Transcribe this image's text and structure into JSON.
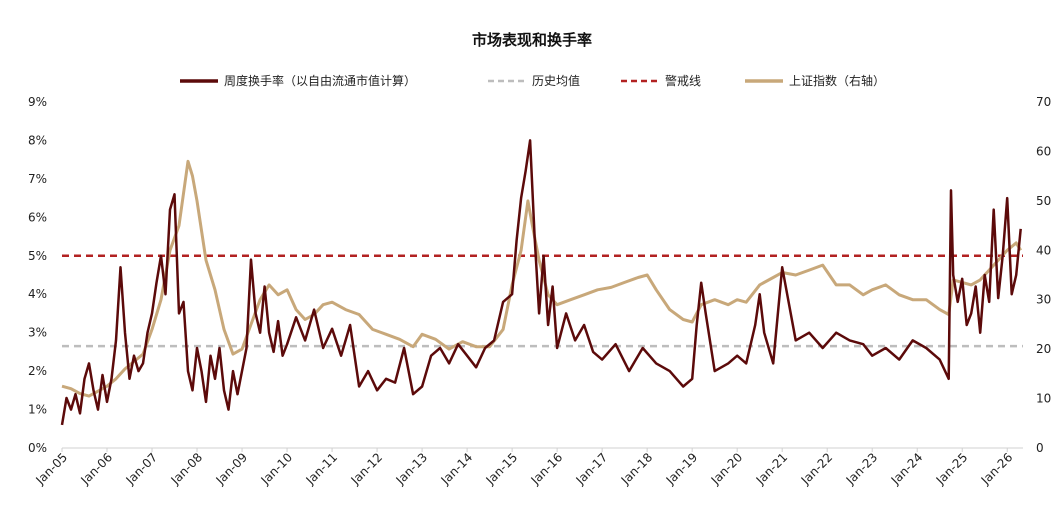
{
  "chart_data": {
    "type": "line",
    "title": "市场表现和换手率",
    "x_ticks": [
      "Jan-05",
      "Jan-06",
      "Jan-07",
      "Jan-08",
      "Jan-09",
      "Jan-10",
      "Jan-11",
      "Jan-12",
      "Jan-13",
      "Jan-14",
      "Jan-15",
      "Jan-16",
      "Jan-17",
      "Jan-18",
      "Jan-19",
      "Jan-20",
      "Jan-21",
      "Jan-22",
      "Jan-23",
      "Jan-24",
      "Jan-25",
      "Jan-26"
    ],
    "x_range": [
      2005.0,
      2026.35
    ],
    "y_left": {
      "ticks": [
        "0%",
        "1%",
        "2%",
        "3%",
        "4%",
        "5%",
        "6%",
        "7%",
        "8%",
        "9%"
      ],
      "range": [
        0,
        9
      ]
    },
    "y_right": {
      "ticks": [
        "0",
        "10",
        "20",
        "30",
        "40",
        "50",
        "60",
        "70"
      ],
      "range": [
        0,
        70
      ]
    },
    "grid": false,
    "legend_position": "top",
    "series": [
      {
        "name": "周度换手率（以自由流通市值计算）",
        "axis": "left",
        "color": "#5c0a0a",
        "x": [
          2005.0,
          2005.1,
          2005.2,
          2005.3,
          2005.4,
          2005.5,
          2005.6,
          2005.7,
          2005.8,
          2005.9,
          2006.0,
          2006.1,
          2006.2,
          2006.3,
          2006.4,
          2006.5,
          2006.6,
          2006.7,
          2006.8,
          2006.9,
          2007.0,
          2007.1,
          2007.2,
          2007.3,
          2007.4,
          2007.5,
          2007.6,
          2007.7,
          2007.8,
          2007.9,
          2008.0,
          2008.1,
          2008.2,
          2008.3,
          2008.4,
          2008.5,
          2008.6,
          2008.7,
          2008.8,
          2008.9,
          2009.0,
          2009.1,
          2009.2,
          2009.3,
          2009.4,
          2009.5,
          2009.6,
          2009.7,
          2009.8,
          2009.9,
          2010.0,
          2010.2,
          2010.4,
          2010.6,
          2010.8,
          2011.0,
          2011.2,
          2011.4,
          2011.6,
          2011.8,
          2012.0,
          2012.2,
          2012.4,
          2012.6,
          2012.8,
          2013.0,
          2013.2,
          2013.4,
          2013.6,
          2013.8,
          2014.0,
          2014.2,
          2014.4,
          2014.6,
          2014.8,
          2015.0,
          2015.1,
          2015.2,
          2015.3,
          2015.4,
          2015.5,
          2015.6,
          2015.7,
          2015.8,
          2015.9,
          2016.0,
          2016.2,
          2016.4,
          2016.6,
          2016.8,
          2017.0,
          2017.3,
          2017.6,
          2017.9,
          2018.2,
          2018.5,
          2018.8,
          2019.0,
          2019.1,
          2019.2,
          2019.3,
          2019.5,
          2019.8,
          2020.0,
          2020.2,
          2020.4,
          2020.5,
          2020.6,
          2020.8,
          2021.0,
          2021.3,
          2021.6,
          2021.9,
          2022.2,
          2022.5,
          2022.8,
          2023.0,
          2023.3,
          2023.6,
          2023.9,
          2024.2,
          2024.5,
          2024.7,
          2024.75,
          2024.8,
          2024.9,
          2025.0,
          2025.1,
          2025.2,
          2025.3,
          2025.4,
          2025.5,
          2025.6,
          2025.7,
          2025.8,
          2025.9,
          2026.0,
          2026.1,
          2026.2,
          2026.3
        ],
        "values": [
          0.6,
          1.3,
          1.0,
          1.4,
          0.9,
          1.8,
          2.2,
          1.5,
          1.0,
          1.9,
          1.2,
          1.8,
          2.8,
          4.7,
          3.0,
          1.8,
          2.4,
          2.0,
          2.2,
          3.0,
          3.5,
          4.3,
          5.0,
          4.0,
          6.2,
          6.6,
          3.5,
          3.8,
          2.0,
          1.5,
          2.6,
          2.0,
          1.2,
          2.4,
          1.8,
          2.6,
          1.5,
          1.0,
          2.0,
          1.4,
          2.0,
          2.6,
          4.9,
          3.5,
          3.0,
          4.2,
          3.0,
          2.5,
          3.3,
          2.4,
          2.7,
          3.4,
          2.8,
          3.6,
          2.6,
          3.1,
          2.4,
          3.2,
          1.6,
          2.0,
          1.5,
          1.8,
          1.7,
          2.6,
          1.4,
          1.6,
          2.4,
          2.6,
          2.2,
          2.7,
          2.4,
          2.1,
          2.6,
          2.8,
          3.8,
          4.0,
          5.4,
          6.5,
          7.2,
          8.0,
          5.5,
          3.5,
          5.0,
          3.2,
          4.2,
          2.6,
          3.5,
          2.8,
          3.2,
          2.5,
          2.3,
          2.7,
          2.0,
          2.6,
          2.2,
          2.0,
          1.6,
          1.8,
          3.2,
          4.3,
          3.5,
          2.0,
          2.2,
          2.4,
          2.2,
          3.2,
          4.0,
          3.0,
          2.2,
          4.7,
          2.8,
          3.0,
          2.6,
          3.0,
          2.8,
          2.7,
          2.4,
          2.6,
          2.3,
          2.8,
          2.6,
          2.3,
          1.8,
          6.7,
          4.5,
          3.8,
          4.4,
          3.2,
          3.5,
          4.2,
          3.0,
          4.5,
          3.8,
          6.2,
          3.9,
          5.0,
          6.5,
          4.0,
          4.5,
          5.7
        ]
      },
      {
        "name": "历史均值",
        "axis": "left",
        "color": "#bdbdbd",
        "value": 2.65
      },
      {
        "name": "警戒线",
        "axis": "left",
        "color": "#b22222",
        "value": 5.0
      },
      {
        "name": "上证指数（右轴）",
        "axis": "right",
        "color": "#c8a87a",
        "x": [
          2005.0,
          2005.2,
          2005.4,
          2005.6,
          2005.8,
          2006.0,
          2006.2,
          2006.4,
          2006.6,
          2006.8,
          2007.0,
          2007.2,
          2007.4,
          2007.6,
          2007.8,
          2007.9,
          2008.0,
          2008.2,
          2008.4,
          2008.6,
          2008.8,
          2009.0,
          2009.2,
          2009.4,
          2009.6,
          2009.8,
          2010.0,
          2010.2,
          2010.4,
          2010.6,
          2010.8,
          2011.0,
          2011.3,
          2011.6,
          2011.9,
          2012.2,
          2012.5,
          2012.8,
          2013.0,
          2013.3,
          2013.6,
          2013.9,
          2014.2,
          2014.5,
          2014.8,
          2015.0,
          2015.2,
          2015.35,
          2015.45,
          2015.6,
          2015.8,
          2016.0,
          2016.3,
          2016.6,
          2016.9,
          2017.2,
          2017.5,
          2017.8,
          2018.0,
          2018.2,
          2018.5,
          2018.8,
          2019.0,
          2019.2,
          2019.5,
          2019.8,
          2020.0,
          2020.2,
          2020.5,
          2020.8,
          2021.0,
          2021.3,
          2021.6,
          2021.9,
          2022.2,
          2022.5,
          2022.8,
          2023.0,
          2023.3,
          2023.6,
          2023.9,
          2024.2,
          2024.5,
          2024.7,
          2024.8,
          2025.0,
          2025.2,
          2025.4,
          2025.6,
          2025.8,
          2026.0,
          2026.2,
          2026.3
        ],
        "values": [
          12.5,
          12.0,
          11.0,
          10.5,
          11.5,
          12.5,
          14.0,
          16.0,
          17.5,
          19.0,
          24.0,
          30.0,
          40.0,
          45.0,
          58.0,
          55.0,
          50.0,
          38.0,
          32.0,
          24.0,
          19.0,
          20.0,
          25.0,
          30.0,
          33.0,
          31.0,
          32.0,
          28.0,
          26.0,
          27.0,
          29.0,
          29.5,
          28.0,
          27.0,
          24.0,
          23.0,
          22.0,
          20.5,
          23.0,
          22.0,
          20.0,
          21.5,
          20.5,
          20.5,
          24.0,
          33.0,
          40.0,
          50.0,
          45.0,
          38.0,
          31.0,
          29.0,
          30.0,
          31.0,
          32.0,
          32.5,
          33.5,
          34.5,
          35.0,
          32.0,
          28.0,
          26.0,
          25.5,
          29.0,
          30.0,
          29.0,
          30.0,
          29.5,
          33.0,
          34.5,
          35.5,
          35.0,
          36.0,
          37.0,
          33.0,
          33.0,
          31.0,
          32.0,
          33.0,
          31.0,
          30.0,
          30.0,
          28.0,
          27.0,
          34.0,
          33.5,
          33.0,
          34.0,
          36.0,
          38.0,
          40.0,
          41.5,
          40.0
        ]
      }
    ]
  }
}
